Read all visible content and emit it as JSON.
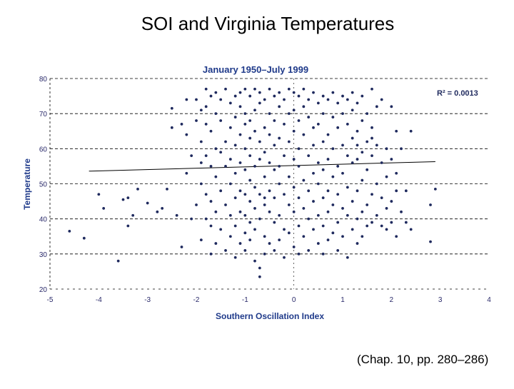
{
  "slide": {
    "title": "SOI and Virginia Temperatures",
    "caption": "(Chap. 10, pp. 280–286)"
  },
  "chart_data": {
    "type": "scatter",
    "title": "January 1950–July 1999",
    "xlabel": "Southern Oscillation Index",
    "ylabel": "Temperature",
    "xlim": [
      -5,
      4
    ],
    "ylim": [
      20,
      80
    ],
    "x_ticks": [
      -5,
      -4,
      -3,
      -2,
      -1,
      0,
      1,
      2,
      3,
      4
    ],
    "y_ticks": [
      20,
      30,
      40,
      50,
      60,
      70,
      80
    ],
    "grid": "horizontal dashed",
    "colors": {
      "points": "#1f2a5e",
      "title": "#1f3a8a",
      "axis_text": "#2a2a6a",
      "trend": "#000000"
    },
    "annotation": "R² = 0.0013",
    "trendline": {
      "slope": 0.38,
      "intercept": 55.2,
      "x_range": [
        -5,
        2.9
      ]
    },
    "points": [
      [
        -4.6,
        36.5
      ],
      [
        -4.3,
        34.5
      ],
      [
        -3.6,
        28
      ],
      [
        -3.5,
        45.5
      ],
      [
        -3.4,
        46
      ],
      [
        -3.4,
        38
      ],
      [
        -3.3,
        41
      ],
      [
        -3.2,
        48.5
      ],
      [
        -3.0,
        44.5
      ],
      [
        -2.8,
        42
      ],
      [
        -2.7,
        43
      ],
      [
        -2.6,
        48.5
      ],
      [
        -2.5,
        71.5
      ],
      [
        -2.4,
        41
      ],
      [
        -2.3,
        32
      ],
      [
        -2.3,
        67
      ],
      [
        -2.2,
        74
      ],
      [
        -2.2,
        64
      ],
      [
        -2.2,
        53
      ],
      [
        -2.1,
        58
      ],
      [
        -2.1,
        40
      ],
      [
        -2.0,
        74
      ],
      [
        -2.0,
        68
      ],
      [
        -2.0,
        44
      ],
      [
        -1.9,
        62
      ],
      [
        -1.9,
        56
      ],
      [
        -1.9,
        50
      ],
      [
        -1.9,
        34
      ],
      [
        -1.8,
        77
      ],
      [
        -1.8,
        72
      ],
      [
        -1.8,
        67
      ],
      [
        -1.8,
        58
      ],
      [
        -1.8,
        47
      ],
      [
        -1.8,
        40
      ],
      [
        -1.7,
        75
      ],
      [
        -1.7,
        65
      ],
      [
        -1.7,
        55
      ],
      [
        -1.7,
        45
      ],
      [
        -1.7,
        38
      ],
      [
        -1.7,
        30
      ],
      [
        -1.6,
        76
      ],
      [
        -1.6,
        70
      ],
      [
        -1.6,
        60
      ],
      [
        -1.6,
        52
      ],
      [
        -1.6,
        42
      ],
      [
        -1.6,
        33
      ],
      [
        -1.5,
        74
      ],
      [
        -1.5,
        68
      ],
      [
        -1.5,
        59
      ],
      [
        -1.5,
        48
      ],
      [
        -1.5,
        37
      ],
      [
        -1.4,
        77
      ],
      [
        -1.4,
        62
      ],
      [
        -1.4,
        55
      ],
      [
        -1.4,
        44
      ],
      [
        -1.4,
        31
      ],
      [
        -1.3,
        73
      ],
      [
        -1.3,
        66
      ],
      [
        -1.3,
        57
      ],
      [
        -1.3,
        50
      ],
      [
        -1.3,
        41
      ],
      [
        -1.3,
        35
      ],
      [
        -1.2,
        75
      ],
      [
        -1.2,
        69
      ],
      [
        -1.2,
        61
      ],
      [
        -1.2,
        53
      ],
      [
        -1.2,
        46
      ],
      [
        -1.2,
        38
      ],
      [
        -1.2,
        29
      ],
      [
        -1.1,
        76
      ],
      [
        -1.1,
        72
      ],
      [
        -1.1,
        64
      ],
      [
        -1.1,
        56
      ],
      [
        -1.1,
        48
      ],
      [
        -1.1,
        42
      ],
      [
        -1.1,
        33
      ],
      [
        -1.0,
        77
      ],
      [
        -1.0,
        70
      ],
      [
        -1.0,
        67
      ],
      [
        -1.0,
        60
      ],
      [
        -1.0,
        54
      ],
      [
        -1.0,
        47
      ],
      [
        -1.0,
        41
      ],
      [
        -1.0,
        36
      ],
      [
        -1.0,
        31
      ],
      [
        -0.9,
        75
      ],
      [
        -0.9,
        68
      ],
      [
        -0.9,
        63
      ],
      [
        -0.9,
        58
      ],
      [
        -0.9,
        51
      ],
      [
        -0.9,
        45
      ],
      [
        -0.9,
        39
      ],
      [
        -0.9,
        34
      ],
      [
        -0.8,
        77
      ],
      [
        -0.8,
        71
      ],
      [
        -0.8,
        65
      ],
      [
        -0.8,
        55
      ],
      [
        -0.8,
        49
      ],
      [
        -0.8,
        43
      ],
      [
        -0.8,
        37
      ],
      [
        -0.8,
        28
      ],
      [
        -0.7,
        76
      ],
      [
        -0.7,
        73
      ],
      [
        -0.7,
        62
      ],
      [
        -0.7,
        57
      ],
      [
        -0.7,
        47
      ],
      [
        -0.7,
        40
      ],
      [
        -0.7,
        26
      ],
      [
        -0.7,
        23.5
      ],
      [
        -0.6,
        74
      ],
      [
        -0.6,
        66
      ],
      [
        -0.6,
        59
      ],
      [
        -0.6,
        52
      ],
      [
        -0.6,
        44
      ],
      [
        -0.6,
        35
      ],
      [
        -0.6,
        30
      ],
      [
        -0.5,
        77
      ],
      [
        -0.5,
        70
      ],
      [
        -0.5,
        64
      ],
      [
        -0.5,
        56
      ],
      [
        -0.5,
        48
      ],
      [
        -0.5,
        42
      ],
      [
        -0.5,
        33
      ],
      [
        -0.4,
        75
      ],
      [
        -0.4,
        68
      ],
      [
        -0.4,
        61
      ],
      [
        -0.4,
        54
      ],
      [
        -0.4,
        46
      ],
      [
        -0.4,
        39
      ],
      [
        -0.4,
        31
      ],
      [
        -0.3,
        76
      ],
      [
        -0.3,
        72
      ],
      [
        -0.3,
        63
      ],
      [
        -0.3,
        55
      ],
      [
        -0.3,
        50
      ],
      [
        -0.3,
        41
      ],
      [
        -0.3,
        34
      ],
      [
        -0.2,
        74
      ],
      [
        -0.2,
        67
      ],
      [
        -0.2,
        58
      ],
      [
        -0.2,
        47
      ],
      [
        -0.2,
        37
      ],
      [
        -0.2,
        29
      ],
      [
        -0.1,
        77
      ],
      [
        -0.1,
        70
      ],
      [
        -0.1,
        62
      ],
      [
        -0.1,
        52
      ],
      [
        -0.1,
        44
      ],
      [
        -0.1,
        36
      ],
      [
        0.0,
        76
      ],
      [
        0.0,
        71
      ],
      [
        0.0,
        65
      ],
      [
        0.0,
        57
      ],
      [
        0.0,
        49
      ],
      [
        0.0,
        42
      ],
      [
        0.0,
        32
      ],
      [
        0.1,
        75
      ],
      [
        0.1,
        68
      ],
      [
        0.1,
        60
      ],
      [
        0.1,
        55
      ],
      [
        0.1,
        46
      ],
      [
        0.1,
        38
      ],
      [
        0.1,
        30
      ],
      [
        0.2,
        77
      ],
      [
        0.2,
        72
      ],
      [
        0.2,
        64
      ],
      [
        0.2,
        51
      ],
      [
        0.2,
        43
      ],
      [
        0.2,
        35
      ],
      [
        0.3,
        74
      ],
      [
        0.3,
        69
      ],
      [
        0.3,
        58
      ],
      [
        0.3,
        48
      ],
      [
        0.3,
        40
      ],
      [
        0.3,
        31
      ],
      [
        0.4,
        76
      ],
      [
        0.4,
        66
      ],
      [
        0.4,
        61
      ],
      [
        0.4,
        53
      ],
      [
        0.4,
        45
      ],
      [
        0.4,
        37
      ],
      [
        0.5,
        73
      ],
      [
        0.5,
        67
      ],
      [
        0.5,
        56
      ],
      [
        0.5,
        50
      ],
      [
        0.5,
        41
      ],
      [
        0.5,
        33
      ],
      [
        0.6,
        75
      ],
      [
        0.6,
        70
      ],
      [
        0.6,
        62
      ],
      [
        0.6,
        54
      ],
      [
        0.6,
        46
      ],
      [
        0.6,
        38
      ],
      [
        0.6,
        30
      ],
      [
        0.7,
        74
      ],
      [
        0.7,
        64
      ],
      [
        0.7,
        57
      ],
      [
        0.7,
        48
      ],
      [
        0.7,
        42
      ],
      [
        0.7,
        34
      ],
      [
        0.8,
        76
      ],
      [
        0.8,
        69
      ],
      [
        0.8,
        60
      ],
      [
        0.8,
        52
      ],
      [
        0.8,
        44
      ],
      [
        0.8,
        36
      ],
      [
        0.9,
        73
      ],
      [
        0.9,
        66
      ],
      [
        0.9,
        55
      ],
      [
        0.9,
        47
      ],
      [
        0.9,
        39
      ],
      [
        0.9,
        31
      ],
      [
        1.0,
        75
      ],
      [
        1.0,
        70
      ],
      [
        1.0,
        61
      ],
      [
        1.0,
        53
      ],
      [
        1.0,
        43
      ],
      [
        1.0,
        35
      ],
      [
        1.1,
        74
      ],
      [
        1.1,
        67
      ],
      [
        1.1,
        58
      ],
      [
        1.1,
        49
      ],
      [
        1.1,
        41
      ],
      [
        1.1,
        29
      ],
      [
        1.2,
        76
      ],
      [
        1.2,
        71
      ],
      [
        1.2,
        63
      ],
      [
        1.2,
        56
      ],
      [
        1.2,
        45
      ],
      [
        1.2,
        37
      ],
      [
        1.3,
        73
      ],
      [
        1.3,
        65
      ],
      [
        1.3,
        57
      ],
      [
        1.3,
        48
      ],
      [
        1.3,
        40
      ],
      [
        1.3,
        33
      ],
      [
        1.4,
        75
      ],
      [
        1.4,
        68
      ],
      [
        1.4,
        59
      ],
      [
        1.4,
        51
      ],
      [
        1.4,
        42
      ],
      [
        1.4,
        35
      ],
      [
        1.5,
        70
      ],
      [
        1.5,
        62
      ],
      [
        1.5,
        54
      ],
      [
        1.5,
        44
      ],
      [
        1.5,
        38
      ],
      [
        1.6,
        77
      ],
      [
        1.6,
        66
      ],
      [
        1.6,
        58
      ],
      [
        1.6,
        47
      ],
      [
        1.6,
        39
      ],
      [
        1.7,
        72
      ],
      [
        1.7,
        61
      ],
      [
        1.7,
        50
      ],
      [
        1.7,
        41
      ],
      [
        1.8,
        74
      ],
      [
        1.8,
        56
      ],
      [
        1.8,
        46
      ],
      [
        1.8,
        38
      ],
      [
        1.9,
        60
      ],
      [
        1.9,
        52
      ],
      [
        1.9,
        43
      ],
      [
        1.9,
        37
      ],
      [
        2.0,
        72
      ],
      [
        2.0,
        57
      ],
      [
        2.0,
        45
      ],
      [
        2.0,
        39
      ],
      [
        2.1,
        65
      ],
      [
        2.1,
        53
      ],
      [
        2.1,
        48
      ],
      [
        2.1,
        35
      ],
      [
        2.2,
        60
      ],
      [
        2.2,
        42
      ],
      [
        2.3,
        39
      ],
      [
        2.3,
        48
      ],
      [
        2.4,
        37
      ],
      [
        2.4,
        65
      ],
      [
        2.8,
        44
      ],
      [
        2.8,
        33.5
      ],
      [
        2.9,
        48.5
      ],
      [
        -4.0,
        47
      ],
      [
        -3.9,
        43
      ],
      [
        -2.5,
        66
      ],
      [
        -1.9,
        71
      ],
      [
        1.6,
        63
      ],
      [
        1.3,
        61
      ],
      [
        -0.6,
        46
      ]
    ]
  }
}
